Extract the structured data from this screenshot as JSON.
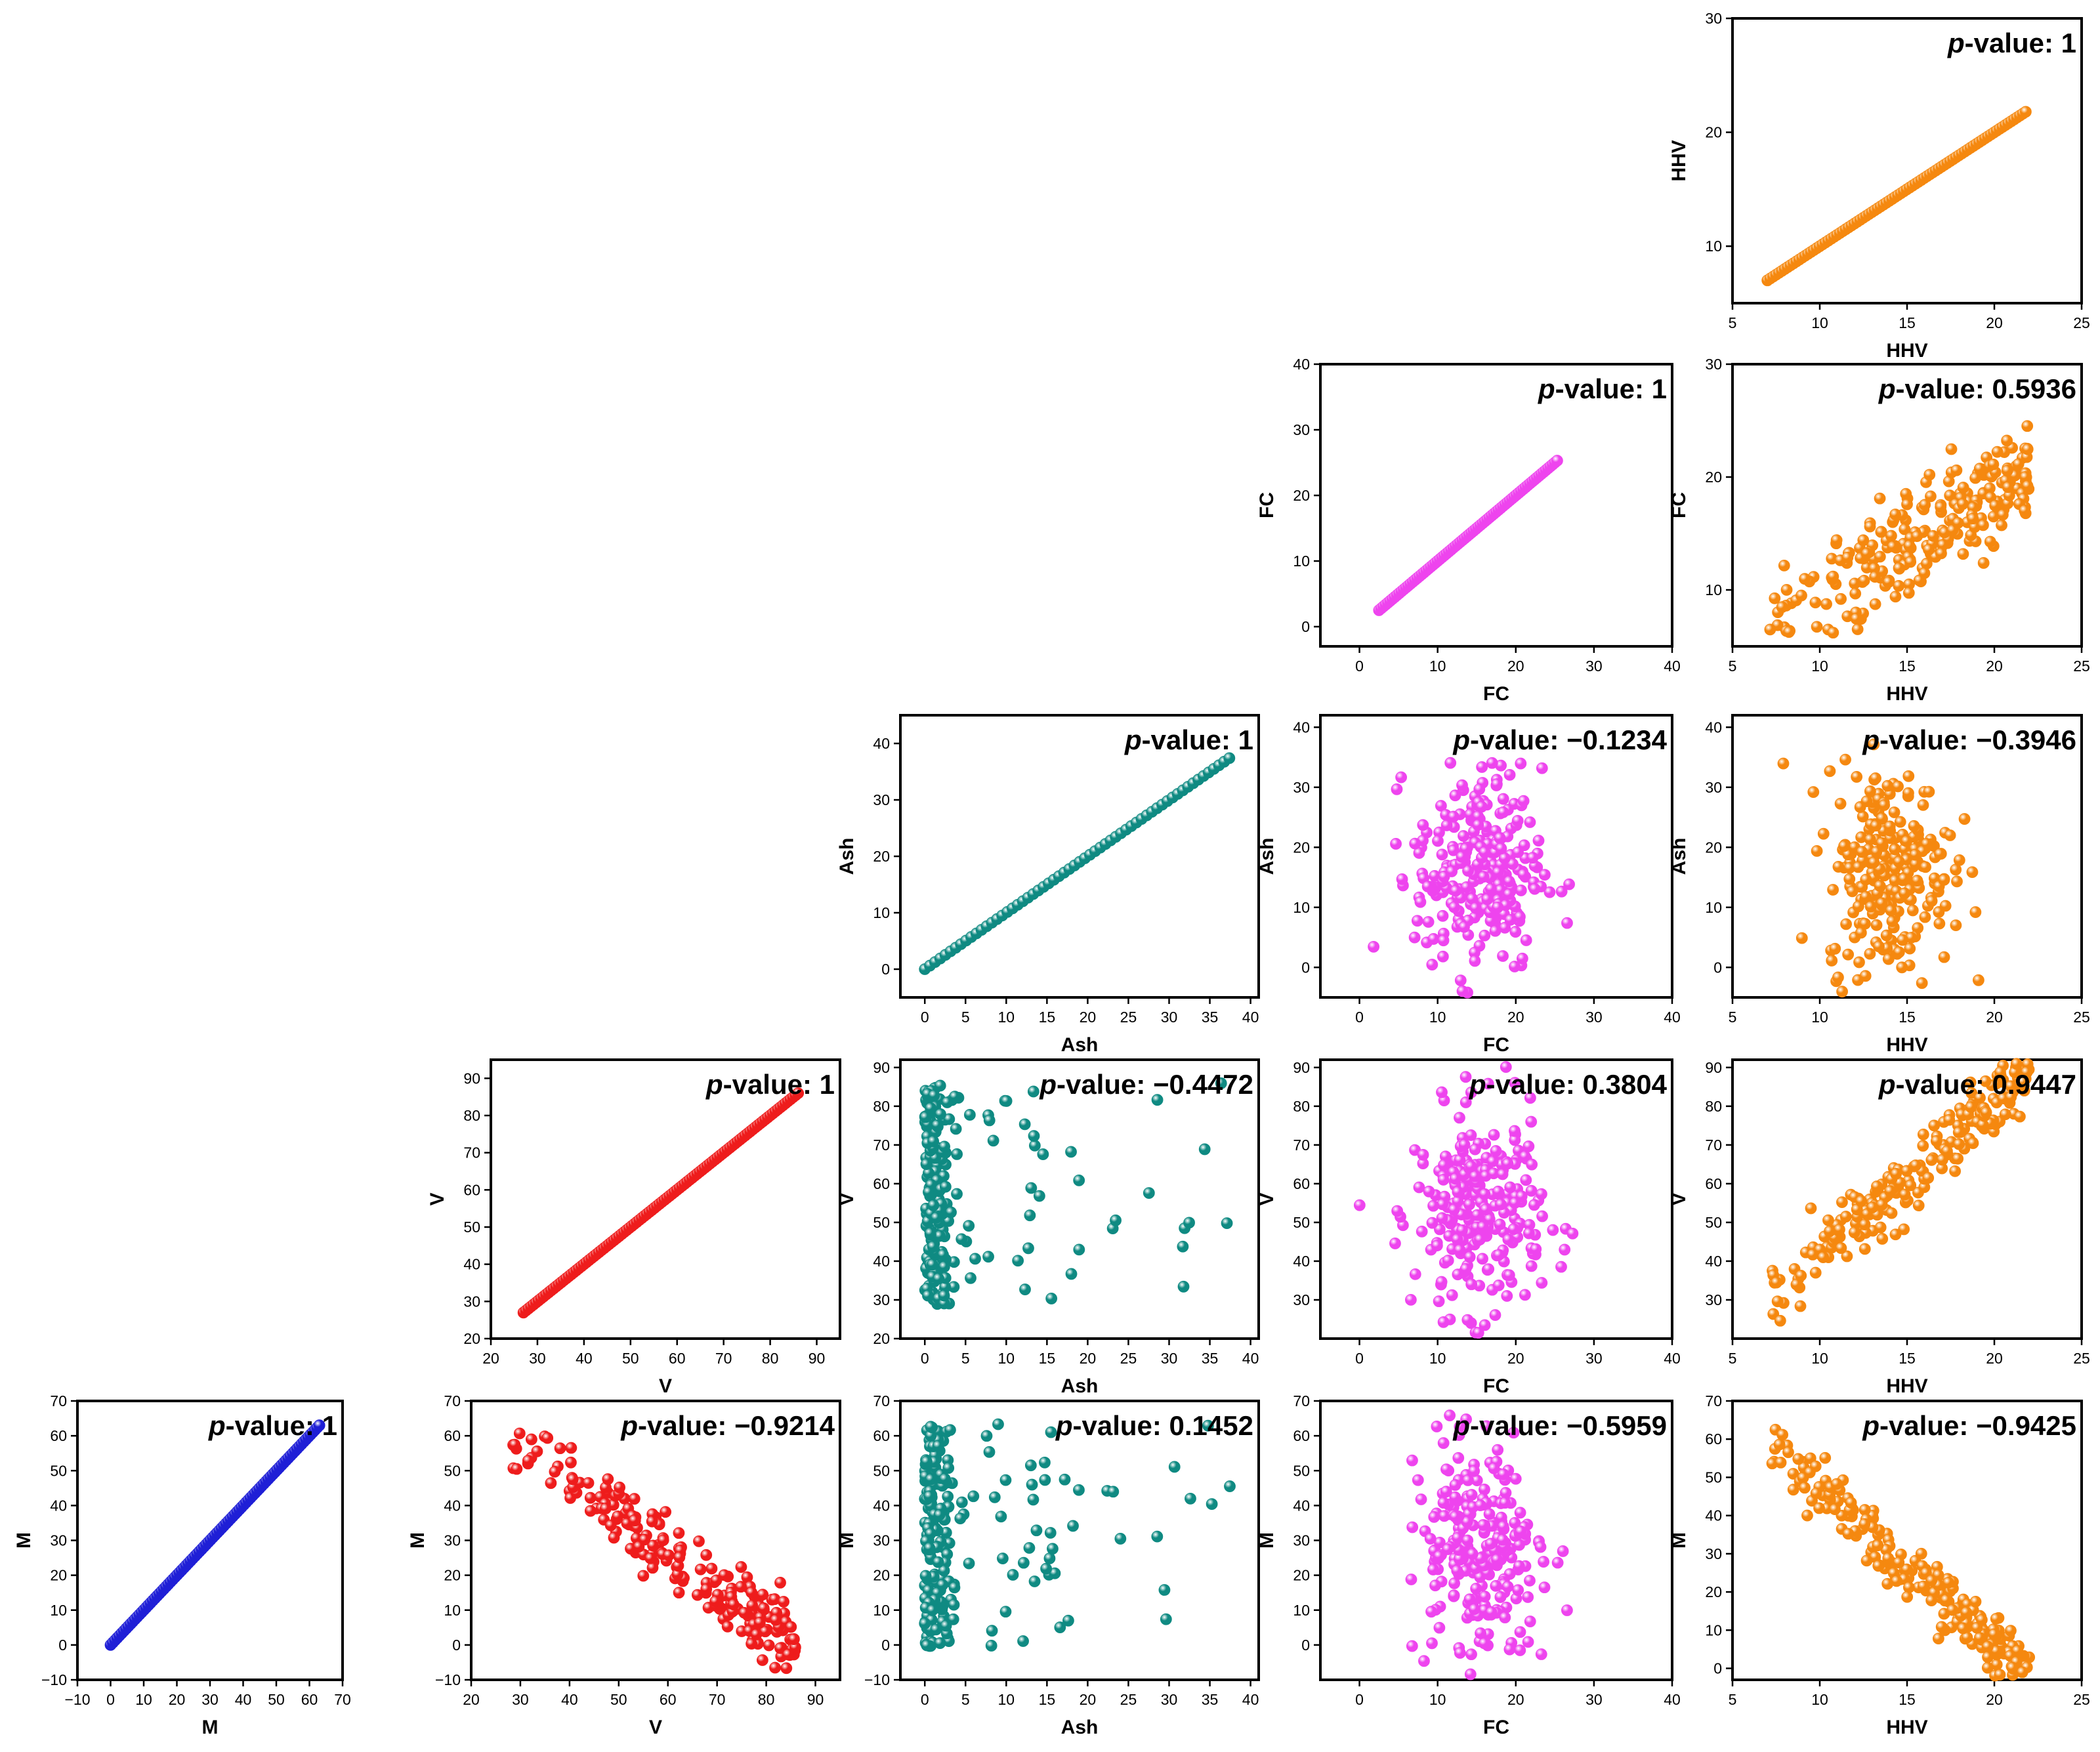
{
  "chart_data": [
    {
      "type": "scatter",
      "id": "M-M",
      "xlabel": "M",
      "ylabel": "M",
      "color": "#1f1fd6",
      "xlim": [
        -10,
        70
      ],
      "ylim": [
        -10,
        70
      ],
      "xticks": [
        -10,
        0,
        10,
        20,
        30,
        40,
        50,
        60,
        70
      ],
      "yticks": [
        -10,
        0,
        10,
        20,
        30,
        40,
        50,
        60,
        70
      ],
      "p_label": "p",
      "p_value": "-value: 1",
      "gen": "identity",
      "gen_range": [
        0,
        63
      ],
      "n": 95
    },
    {
      "type": "scatter",
      "id": "M-V",
      "xlabel": "V",
      "ylabel": "M",
      "color": "#ee1c1c",
      "xlim": [
        20,
        95
      ],
      "ylim": [
        -10,
        70
      ],
      "xticks": [
        20,
        30,
        40,
        50,
        60,
        70,
        80,
        90
      ],
      "yticks": [
        -10,
        0,
        10,
        20,
        30,
        40,
        50,
        60,
        70
      ],
      "p_label": "p",
      "p_value": "-value: −0.9214",
      "gen": "linear",
      "slope": -1.02,
      "intercept": 88,
      "noise": 5,
      "x_range": [
        27,
        86
      ],
      "n": 200
    },
    {
      "type": "scatter",
      "id": "M-Ash",
      "xlabel": "Ash",
      "ylabel": "M",
      "color": "#0f8a82",
      "xlim": [
        -3,
        41
      ],
      "ylim": [
        -10,
        70
      ],
      "xticks": [
        0,
        5,
        10,
        15,
        20,
        25,
        30,
        35,
        40
      ],
      "yticks": [
        -10,
        0,
        10,
        20,
        30,
        40,
        50,
        60,
        70
      ],
      "p_label": "p",
      "p_value": "-value: 0.1452",
      "gen": "cluster",
      "n": 210
    },
    {
      "type": "scatter",
      "id": "M-FC",
      "xlabel": "FC",
      "ylabel": "M",
      "color": "#ee44ee",
      "xlim": [
        -5,
        40
      ],
      "ylim": [
        -10,
        70
      ],
      "xticks": [
        0,
        10,
        20,
        30,
        40
      ],
      "yticks": [
        0,
        10,
        20,
        30,
        40,
        50,
        60,
        70
      ],
      "p_label": "p",
      "p_value": "-value: −0.5959",
      "gen": "cloud",
      "n": 260
    },
    {
      "type": "scatter",
      "id": "M-HHV",
      "xlabel": "HHV",
      "ylabel": "M",
      "color": "#f5880f",
      "xlim": [
        5,
        25
      ],
      "ylim": [
        -3,
        70
      ],
      "xticks": [
        5,
        10,
        15,
        20,
        25
      ],
      "yticks": [
        0,
        10,
        20,
        30,
        40,
        50,
        60,
        70
      ],
      "p_label": "p",
      "p_value": "-value: −0.9425",
      "gen": "linear",
      "slope": -4.1,
      "intercept": 88,
      "noise": 4,
      "x_range": [
        7,
        22
      ],
      "n": 220
    },
    {
      "type": "scatter",
      "id": "V-V",
      "xlabel": "V",
      "ylabel": "V",
      "color": "#ee1c1c",
      "xlim": [
        20,
        95
      ],
      "ylim": [
        20,
        95
      ],
      "xticks": [
        20,
        30,
        40,
        50,
        60,
        70,
        80,
        90
      ],
      "yticks": [
        20,
        30,
        40,
        50,
        60,
        70,
        80,
        90
      ],
      "p_label": "p",
      "p_value": "-value: 1",
      "gen": "identity",
      "gen_range": [
        27,
        86
      ],
      "n": 110
    },
    {
      "type": "scatter",
      "id": "V-Ash",
      "xlabel": "Ash",
      "ylabel": "V",
      "color": "#0f8a82",
      "xlim": [
        -3,
        41
      ],
      "ylim": [
        20,
        92
      ],
      "xticks": [
        0,
        5,
        10,
        15,
        20,
        25,
        30,
        35,
        40
      ],
      "yticks": [
        20,
        30,
        40,
        50,
        60,
        70,
        80,
        90
      ],
      "p_label": "p",
      "p_value": "-value: −0.4472",
      "gen": "cluster",
      "n": 200
    },
    {
      "type": "scatter",
      "id": "V-FC",
      "xlabel": "FC",
      "ylabel": "V",
      "color": "#ee44ee",
      "xlim": [
        -5,
        40
      ],
      "ylim": [
        20,
        92
      ],
      "xticks": [
        0,
        10,
        20,
        30,
        40
      ],
      "yticks": [
        30,
        40,
        50,
        60,
        70,
        80,
        90
      ],
      "p_label": "p",
      "p_value": "-value: 0.3804",
      "gen": "cloud",
      "n": 260
    },
    {
      "type": "scatter",
      "id": "V-HHV",
      "xlabel": "HHV",
      "ylabel": "V",
      "color": "#f5880f",
      "xlim": [
        5,
        25
      ],
      "ylim": [
        20,
        92
      ],
      "xticks": [
        5,
        10,
        15,
        20,
        25
      ],
      "yticks": [
        30,
        40,
        50,
        60,
        70,
        80,
        90
      ],
      "p_label": "p",
      "p_value": "-value: 0.9447",
      "gen": "linear",
      "slope": 3.9,
      "intercept": 3,
      "noise": 4,
      "x_range": [
        7,
        22
      ],
      "n": 220
    },
    {
      "type": "scatter",
      "id": "Ash-Ash",
      "xlabel": "Ash",
      "ylabel": "Ash",
      "color": "#0f8a82",
      "xlim": [
        -3,
        41
      ],
      "ylim": [
        -5,
        45
      ],
      "xticks": [
        0,
        5,
        10,
        15,
        20,
        25,
        30,
        35,
        40
      ],
      "yticks": [
        0,
        10,
        20,
        30,
        40
      ],
      "p_label": "p",
      "p_value": "-value: 1",
      "gen": "identity",
      "gen_range": [
        0,
        37.4
      ],
      "n": 60
    },
    {
      "type": "scatter",
      "id": "Ash-FC",
      "xlabel": "FC",
      "ylabel": "Ash",
      "color": "#ee44ee",
      "xlim": [
        -5,
        40
      ],
      "ylim": [
        -5,
        42
      ],
      "xticks": [
        0,
        10,
        20,
        30,
        40
      ],
      "yticks": [
        0,
        10,
        20,
        30,
        40
      ],
      "p_label": "p",
      "p_value": "-value: −0.1234",
      "gen": "cloud",
      "n": 260
    },
    {
      "type": "scatter",
      "id": "Ash-HHV",
      "xlabel": "HHV",
      "ylabel": "Ash",
      "color": "#f5880f",
      "xlim": [
        5,
        25
      ],
      "ylim": [
        -5,
        42
      ],
      "xticks": [
        5,
        10,
        15,
        20,
        25
      ],
      "yticks": [
        0,
        10,
        20,
        30,
        40
      ],
      "p_label": "p",
      "p_value": "-value: −0.3946",
      "gen": "cloud",
      "n": 240
    },
    {
      "type": "scatter",
      "id": "FC-FC",
      "xlabel": "FC",
      "ylabel": "FC",
      "color": "#ee44ee",
      "xlim": [
        -5,
        40
      ],
      "ylim": [
        -3,
        40
      ],
      "xticks": [
        0,
        10,
        20,
        30,
        40
      ],
      "yticks": [
        0,
        10,
        20,
        30,
        40
      ],
      "p_label": "p",
      "p_value": "-value: 1",
      "gen": "identity",
      "gen_range": [
        2.5,
        25.3
      ],
      "n": 80
    },
    {
      "type": "scatter",
      "id": "FC-HHV",
      "xlabel": "HHV",
      "ylabel": "FC",
      "color": "#f5880f",
      "xlim": [
        5,
        25
      ],
      "ylim": [
        5,
        30
      ],
      "xticks": [
        5,
        10,
        15,
        20,
        25
      ],
      "yticks": [
        10,
        20,
        30
      ],
      "p_label": "p",
      "p_value": "-value: 0.5936",
      "gen": "linear",
      "slope": 0.9,
      "intercept": 0.5,
      "noise": 2.2,
      "x_range": [
        7,
        22
      ],
      "n": 240
    },
    {
      "type": "scatter",
      "id": "HHV-HHV",
      "xlabel": "HHV",
      "ylabel": "HHV",
      "color": "#f5880f",
      "xlim": [
        5,
        25
      ],
      "ylim": [
        5,
        30
      ],
      "xticks": [
        5,
        10,
        15,
        20,
        25
      ],
      "yticks": [
        10,
        20,
        30
      ],
      "p_label": "p",
      "p_value": "-value: 1",
      "gen": "identity",
      "gen_range": [
        7,
        21.8
      ],
      "n": 90
    }
  ]
}
